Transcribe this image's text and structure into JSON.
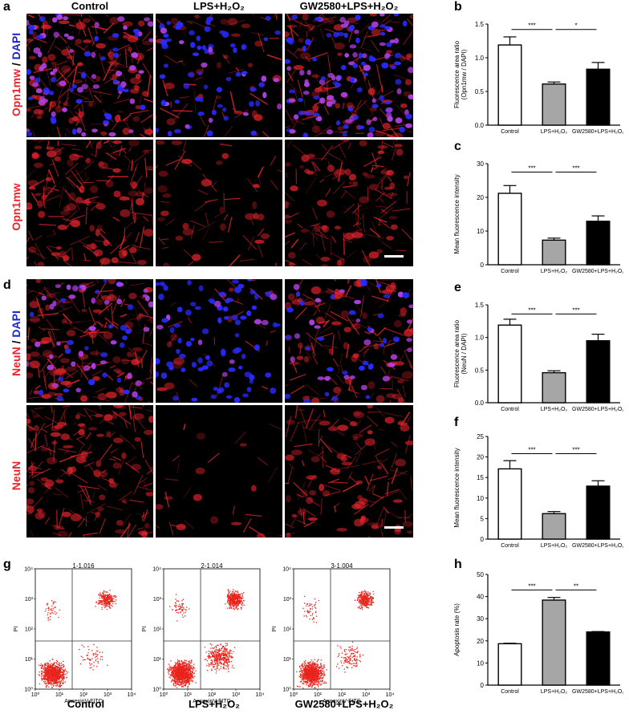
{
  "panels": {
    "a": "a",
    "b": "b",
    "c": "c",
    "d": "d",
    "e": "e",
    "f": "f",
    "g": "g",
    "h": "h"
  },
  "columns": {
    "control": "Control",
    "lps": "LPS+H₂O₂",
    "gw": "GW2580+LPS+H₂O₂"
  },
  "row_labels": {
    "opn_dapi_main": "Opn1mw",
    "opn_dapi_sep": " / ",
    "opn_dapi_dapi": "DAPI",
    "opn": "Opn1mw",
    "neun_dapi_main": "NeuN",
    "neun_dapi_sep": " / ",
    "neun_dapi_dapi": "DAPI",
    "neun": "NeuN"
  },
  "colors": {
    "control_bar": "#ffffff",
    "lps_bar": "#a6a6a6",
    "gw_bar": "#000000",
    "stain_red": "#e8242c",
    "stain_blue": "#2a2aff",
    "flow_dot": "#e8241c"
  },
  "flow": {
    "x_label": "AnnexinV-FITC",
    "y_label": "PI",
    "x_ticks": [
      "10⁰",
      "10¹",
      "10²",
      "10³",
      "10⁴"
    ],
    "y_ticks": [
      "10⁰",
      "10¹",
      "10²",
      "10³",
      "10⁴"
    ],
    "plots": [
      {
        "title": "1-1.016",
        "label": "Control"
      },
      {
        "title": "2-1.014",
        "label": "LPS+H₂O₂"
      },
      {
        "title": "3-1.004",
        "label": "GW2580+LPS+H₂O₂"
      }
    ]
  },
  "chart_data": [
    {
      "panel": "b",
      "type": "bar",
      "categories": [
        "Control",
        "LPS+H₂O₂",
        "GW2580+LPS+H₂O₂"
      ],
      "values": [
        1.19,
        0.61,
        0.83
      ],
      "errors": [
        0.12,
        0.03,
        0.1
      ],
      "ylabel": "Fluorescence area ratio\n(Opn1mw / DAPI)",
      "ylim": [
        0,
        1.5
      ],
      "yticks": [
        "0.0",
        "0.5",
        "1.0",
        "1.5"
      ],
      "significance": [
        {
          "from": 0,
          "to": 1,
          "label": "***",
          "y": 1.42
        },
        {
          "from": 1,
          "to": 2,
          "label": "*",
          "y": 1.42
        }
      ]
    },
    {
      "panel": "c",
      "type": "bar",
      "categories": [
        "Control",
        "LPS+H₂O₂",
        "GW2580+LPS+H₂O₂"
      ],
      "values": [
        21.2,
        7.3,
        12.9
      ],
      "errors": [
        2.3,
        0.6,
        1.6
      ],
      "ylabel": "Mean fluorescence intensity",
      "ylim": [
        0,
        30
      ],
      "yticks": [
        "0",
        "10",
        "20",
        "30"
      ],
      "significance": [
        {
          "from": 0,
          "to": 1,
          "label": "***",
          "y": 27.5
        },
        {
          "from": 1,
          "to": 2,
          "label": "***",
          "y": 27.5
        }
      ]
    },
    {
      "panel": "e",
      "type": "bar",
      "categories": [
        "Control",
        "LPS+H₂O₂",
        "GW2580+LPS+H₂O₂"
      ],
      "values": [
        1.19,
        0.46,
        0.95
      ],
      "errors": [
        0.09,
        0.03,
        0.1
      ],
      "ylabel": "Fluorescence area ratio\n(NeuN / DAPI)",
      "ylim": [
        0,
        1.5
      ],
      "yticks": [
        "0.0",
        "0.5",
        "1.0",
        "1.5"
      ],
      "significance": [
        {
          "from": 0,
          "to": 1,
          "label": "***",
          "y": 1.36
        },
        {
          "from": 1,
          "to": 2,
          "label": "***",
          "y": 1.36
        }
      ]
    },
    {
      "panel": "f",
      "type": "bar",
      "categories": [
        "Control",
        "LPS+H₂O₂",
        "GW2580+LPS+H₂O₂"
      ],
      "values": [
        17.1,
        6.2,
        12.9
      ],
      "errors": [
        2.0,
        0.5,
        1.3
      ],
      "ylabel": "Mean fluorescence intensity",
      "ylim": [
        0,
        25
      ],
      "yticks": [
        "0",
        "5",
        "10",
        "15",
        "20",
        "25"
      ],
      "significance": [
        {
          "from": 0,
          "to": 1,
          "label": "***",
          "y": 20.8
        },
        {
          "from": 1,
          "to": 2,
          "label": "***",
          "y": 20.8
        }
      ]
    },
    {
      "panel": "h",
      "type": "bar",
      "categories": [
        "Control",
        "LPS+H₂O₂",
        "GW2580+LPS+H₂O₂"
      ],
      "values": [
        18.7,
        38.4,
        24.0
      ],
      "errors": [
        0.2,
        1.2,
        0.2
      ],
      "ylabel": "Apoptosis rate (%)",
      "ylim": [
        0,
        50
      ],
      "yticks": [
        "0",
        "10",
        "20",
        "30",
        "40",
        "50"
      ],
      "significance": [
        {
          "from": 0,
          "to": 1,
          "label": "***",
          "y": 43.0
        },
        {
          "from": 1,
          "to": 2,
          "label": "**",
          "y": 43.0
        }
      ]
    }
  ]
}
